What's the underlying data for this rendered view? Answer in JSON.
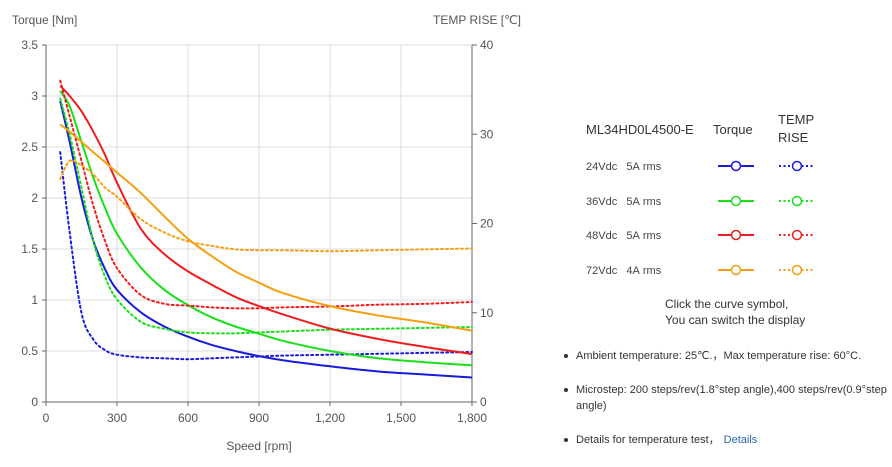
{
  "chart_data": {
    "type": "line",
    "xlabel": "Speed [rpm]",
    "ylabel_left": "Torque  [Nm]",
    "ylabel_right": "TEMP RISE [℃]",
    "xlim": [
      0,
      1800
    ],
    "ylim_left": [
      0,
      3.5
    ],
    "ylim_right": [
      0,
      40
    ],
    "x_ticks": [
      0,
      300,
      600,
      900,
      1200,
      1500,
      1800
    ],
    "x_tick_labels": [
      "0",
      "300",
      "600",
      "900",
      "1,200",
      "1,500",
      "1,800"
    ],
    "y_ticks_left": [
      0,
      0.5,
      1,
      1.5,
      2,
      2.5,
      3,
      3.5
    ],
    "y_tick_labels_left": [
      "0",
      "0.5",
      "1",
      "1.5",
      "2",
      "2.5",
      "3",
      "3.5"
    ],
    "y_ticks_right": [
      0,
      10,
      20,
      30,
      40
    ],
    "y_tick_labels_right": [
      "0",
      "10",
      "20",
      "30",
      "40"
    ],
    "grid": true,
    "series": [
      {
        "name": "24Vdc 5A rms Torque",
        "axis": "left",
        "style": "solid",
        "color": "#1a1adb",
        "x": [
          60,
          100,
          150,
          200,
          250,
          300,
          400,
          500,
          600,
          700,
          800,
          900,
          1000,
          1200,
          1400,
          1600,
          1800
        ],
        "y": [
          2.95,
          2.55,
          2.0,
          1.58,
          1.3,
          1.1,
          0.88,
          0.74,
          0.64,
          0.56,
          0.5,
          0.45,
          0.41,
          0.35,
          0.3,
          0.27,
          0.24
        ]
      },
      {
        "name": "24Vdc 5A rms TEMP RISE",
        "axis": "right",
        "style": "dotted",
        "color": "#1a1adb",
        "x": [
          60,
          100,
          150,
          200,
          250,
          300,
          400,
          500,
          600,
          700,
          800,
          900,
          1000,
          1200,
          1400,
          1600,
          1800
        ],
        "y": [
          28,
          19,
          10,
          7,
          5.8,
          5.3,
          5.0,
          4.9,
          4.8,
          4.9,
          5.0,
          5.1,
          5.2,
          5.3,
          5.4,
          5.5,
          5.6
        ]
      },
      {
        "name": "36Vdc 5A rms Torque",
        "axis": "left",
        "style": "solid",
        "color": "#18e018",
        "x": [
          60,
          100,
          150,
          200,
          250,
          300,
          400,
          500,
          600,
          700,
          800,
          900,
          1000,
          1200,
          1400,
          1600,
          1800
        ],
        "y": [
          3.05,
          2.9,
          2.55,
          2.2,
          1.9,
          1.65,
          1.32,
          1.1,
          0.95,
          0.83,
          0.74,
          0.67,
          0.6,
          0.5,
          0.43,
          0.39,
          0.36
        ]
      },
      {
        "name": "36Vdc 5A rms TEMP RISE",
        "axis": "right",
        "style": "dotted",
        "color": "#18e018",
        "x": [
          60,
          100,
          150,
          200,
          250,
          300,
          400,
          500,
          600,
          700,
          800,
          900,
          1000,
          1200,
          1400,
          1600,
          1800
        ],
        "y": [
          34,
          30,
          24,
          18,
          14,
          11.5,
          9,
          8.2,
          7.8,
          7.7,
          7.7,
          7.8,
          7.9,
          8.1,
          8.2,
          8.3,
          8.4
        ]
      },
      {
        "name": "48Vdc 5A rms Torque",
        "axis": "left",
        "style": "solid",
        "color": "#ee1c1c",
        "x": [
          60,
          100,
          150,
          200,
          250,
          300,
          400,
          500,
          600,
          700,
          800,
          900,
          1000,
          1200,
          1400,
          1600,
          1800
        ],
        "y": [
          3.1,
          3.0,
          2.85,
          2.65,
          2.42,
          2.15,
          1.7,
          1.45,
          1.28,
          1.15,
          1.03,
          0.94,
          0.86,
          0.72,
          0.62,
          0.54,
          0.47
        ]
      },
      {
        "name": "48Vdc 5A rms TEMP RISE",
        "axis": "right",
        "style": "dotted",
        "color": "#ee1c1c",
        "x": [
          60,
          100,
          150,
          200,
          250,
          300,
          400,
          500,
          600,
          700,
          800,
          900,
          1000,
          1200,
          1400,
          1600,
          1800
        ],
        "y": [
          36,
          32,
          27,
          22,
          18,
          15,
          12,
          11,
          10.8,
          10.6,
          10.5,
          10.5,
          10.6,
          10.7,
          10.9,
          11.0,
          11.2
        ]
      },
      {
        "name": "72Vdc 4A rms Torque",
        "axis": "left",
        "style": "solid",
        "color": "#f5a012",
        "x": [
          60,
          100,
          150,
          200,
          250,
          300,
          400,
          500,
          600,
          700,
          800,
          900,
          1000,
          1200,
          1400,
          1600,
          1800
        ],
        "y": [
          2.72,
          2.65,
          2.55,
          2.45,
          2.35,
          2.25,
          2.05,
          1.82,
          1.6,
          1.43,
          1.28,
          1.17,
          1.07,
          0.94,
          0.85,
          0.78,
          0.7
        ]
      },
      {
        "name": "72Vdc 4A rms TEMP RISE",
        "axis": "right",
        "style": "dotted",
        "color": "#f5a012",
        "x": [
          60,
          100,
          150,
          200,
          250,
          300,
          400,
          500,
          600,
          700,
          800,
          900,
          1000,
          1200,
          1400,
          1600,
          1800
        ],
        "y": [
          25,
          27,
          26.5,
          25.5,
          24,
          23,
          20.5,
          19,
          18,
          17.5,
          17.1,
          17,
          17,
          16.9,
          17,
          17.1,
          17.2
        ]
      }
    ]
  },
  "legend": {
    "model": "ML34HD0L4500-E",
    "col_torque": "Torque",
    "col_temp_line1": "TEMP",
    "col_temp_line2": "RISE",
    "rows": [
      {
        "label": "24Vdc   5A rms",
        "color": "#1a1adb"
      },
      {
        "label": "36Vdc   5A rms",
        "color": "#18e018"
      },
      {
        "label": "48Vdc   5A rms",
        "color": "#ee1c1c"
      },
      {
        "label": "72Vdc   4A rms",
        "color": "#f5a012"
      }
    ],
    "hint_line1": "Click the curve symbol,",
    "hint_line2": "You can switch the display"
  },
  "notes": {
    "n1": "Ambient temperature: 25℃.，Max temperature rise: 60°C.",
    "n2": "Microstep: 200 steps/rev(1.8°step angle),400 steps/rev(0.9°step angle)",
    "n3_text": "Details for temperature test，",
    "n3_link": "Details"
  }
}
